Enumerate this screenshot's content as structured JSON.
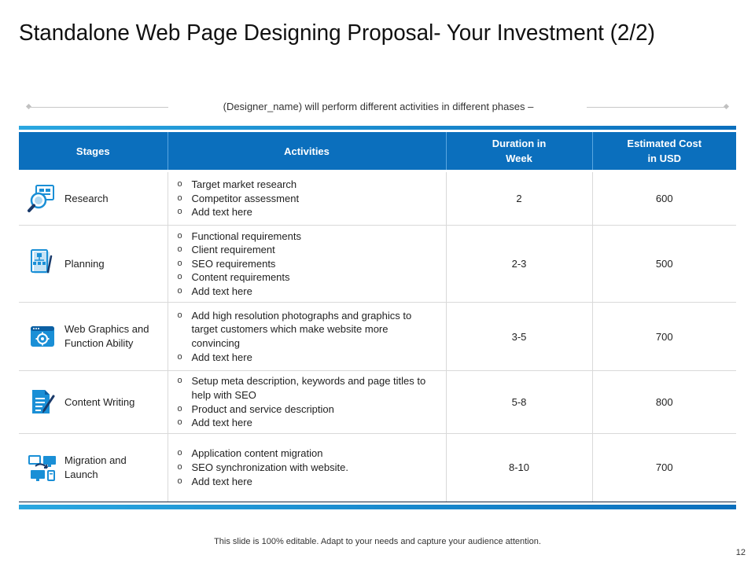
{
  "slide": {
    "title": "Standalone Web Page Designing Proposal- Your Investment (2/2)",
    "subtitle": "(Designer_name) will perform different activities in different phases –",
    "footer": "This slide is 100% editable. Adapt to your needs and capture your audience attention.",
    "page_number": "12"
  },
  "table": {
    "headers": {
      "stages": "Stages",
      "activities": "Activities",
      "duration_line1": "Duration in",
      "duration_line2": "Week",
      "cost_line1": "Estimated Cost",
      "cost_line2": "in USD"
    },
    "bullet": "o",
    "rows": [
      {
        "stage": "Research",
        "icon": "research-magnifier-icon",
        "activities": [
          "Target market research",
          "Competitor assessment",
          "Add text here"
        ],
        "duration": "2",
        "cost": "600"
      },
      {
        "stage": "Planning",
        "icon": "planning-chart-icon",
        "activities": [
          "Functional requirements",
          "Client requirement",
          "SEO requirements",
          "Content requirements",
          "Add text here"
        ],
        "duration": "2-3",
        "cost": "500"
      },
      {
        "stage_line1": "Web Graphics and",
        "stage_line2": "Function Ability",
        "icon": "web-graphics-window-icon",
        "activities": [
          "Add high resolution photographs and graphics to target customers which make website more convincing",
          "Add text here"
        ],
        "duration": "3-5",
        "cost": "700"
      },
      {
        "stage": "Content Writing",
        "icon": "content-writing-document-icon",
        "activities": [
          "Setup meta description, keywords and page titles to help with SEO",
          "Product and service description",
          "Add text here"
        ],
        "duration": "5-8",
        "cost": "800"
      },
      {
        "stage_line1": "Migration and",
        "stage_line2": "Launch",
        "icon": "migration-computers-icon",
        "activities": [
          "Application content migration",
          "SEO synchronization with website.",
          "Add text here"
        ],
        "duration": "8-10",
        "cost": "700"
      }
    ]
  },
  "colors": {
    "header_blue": "#0b6fbd",
    "accent_light_blue": "#2aa7e0",
    "icon_blue": "#1a8fd6"
  }
}
